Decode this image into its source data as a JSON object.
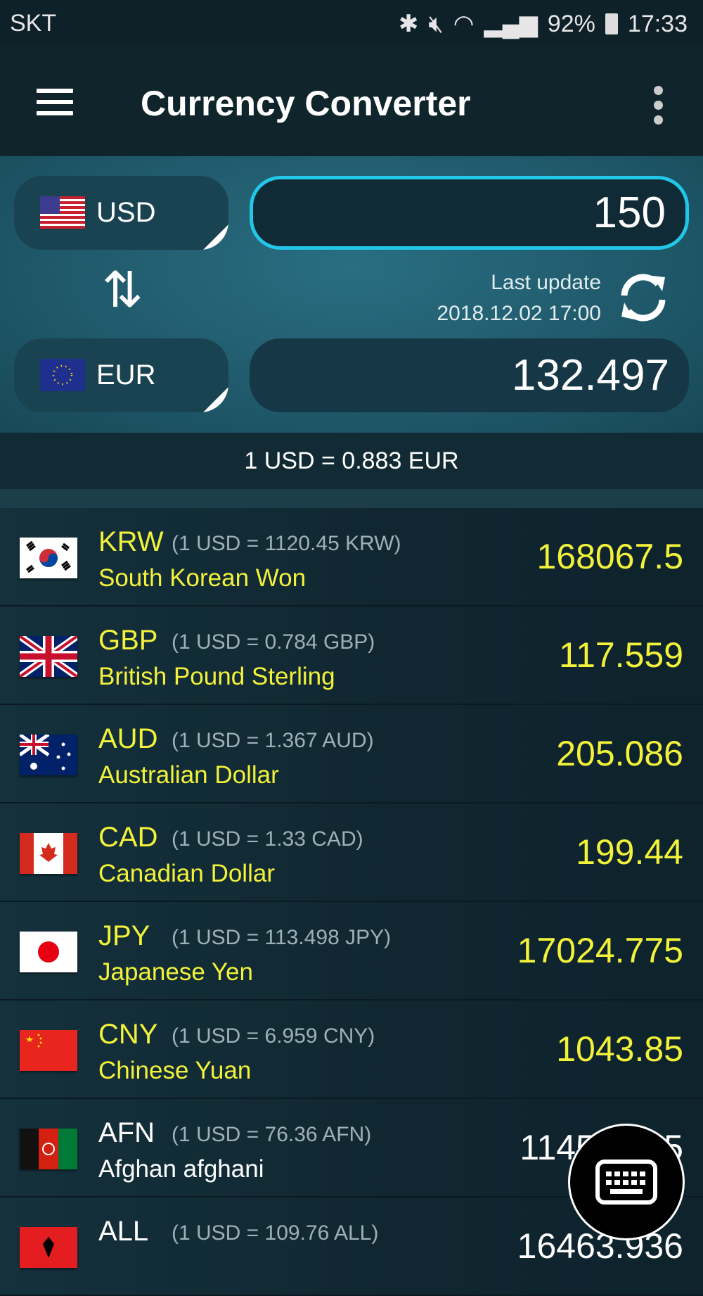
{
  "status_bar": {
    "carrier": "SKT",
    "battery": "92%",
    "time": "17:33"
  },
  "app_bar": {
    "title": "Currency Converter"
  },
  "converter": {
    "from": {
      "code": "USD",
      "flag": "us",
      "amount": "150"
    },
    "to": {
      "code": "EUR",
      "flag": "eu",
      "amount": "132.497"
    },
    "last_update_label": "Last update",
    "last_update_time": "2018.12.02 17:00",
    "rate_text": "1 USD = 0.883 EUR",
    "accent": "#22c6e8"
  },
  "list": [
    {
      "code": "KRW",
      "rate": "(1 USD = 1120.45 KRW)",
      "name": "South Korean Won",
      "value": "168067.5",
      "favorite": true,
      "flag": "kr"
    },
    {
      "code": "GBP",
      "rate": "(1 USD = 0.784 GBP)",
      "name": "British Pound Sterling",
      "value": "117.559",
      "favorite": true,
      "flag": "gb"
    },
    {
      "code": "AUD",
      "rate": "(1 USD = 1.367 AUD)",
      "name": "Australian Dollar",
      "value": "205.086",
      "favorite": true,
      "flag": "au"
    },
    {
      "code": "CAD",
      "rate": "(1 USD = 1.33 CAD)",
      "name": "Canadian Dollar",
      "value": "199.44",
      "favorite": true,
      "flag": "ca"
    },
    {
      "code": "JPY",
      "rate": "(1 USD = 113.498 JPY)",
      "name": "Japanese Yen",
      "value": "17024.775",
      "favorite": true,
      "flag": "jp"
    },
    {
      "code": "CNY",
      "rate": "(1 USD = 6.959 CNY)",
      "name": "Chinese Yuan",
      "value": "1043.85",
      "favorite": true,
      "flag": "cn"
    },
    {
      "code": "AFN",
      "rate": "(1 USD = 76.36 AFN)",
      "name": "Afghan afghani",
      "value": "11453.925",
      "favorite": false,
      "flag": "af"
    },
    {
      "code": "ALL",
      "rate": "(1 USD = 109.76 ALL)",
      "name": "",
      "value": "16463.936",
      "favorite": false,
      "flag": "al"
    }
  ],
  "favorite_color": "#f2f23a",
  "fab": {
    "icon": "keyboard-icon"
  }
}
